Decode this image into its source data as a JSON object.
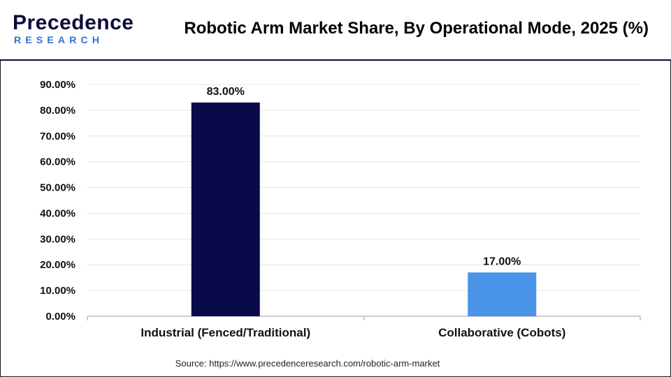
{
  "header": {
    "logo_word": "Precedence",
    "logo_sub": "RESEARCH",
    "title": "Robotic Arm Market Share, By Operational Mode, 2025 (%)"
  },
  "footer": {
    "source": "Source: https://www.precedenceresearch.com/robotic-arm-market"
  },
  "colors": {
    "brand_dark": "#0b0b3b",
    "brand_blue": "#2f6fd6"
  },
  "chart_data": {
    "type": "bar",
    "title": "Robotic Arm Market Share, By Operational Mode, 2025 (%)",
    "xlabel": "",
    "ylabel": "",
    "categories": [
      "Industrial (Fenced/Traditional)",
      "Collaborative (Cobots)"
    ],
    "values": [
      83.0,
      17.0
    ],
    "data_labels": [
      "83.00%",
      "17.00%"
    ],
    "bar_colors": [
      "#0a0a4a",
      "#4a94ea"
    ],
    "ylim": [
      0,
      90
    ],
    "yticks": [
      0,
      10,
      20,
      30,
      40,
      50,
      60,
      70,
      80,
      90
    ],
    "ytick_labels": [
      "0.00%",
      "10.00%",
      "20.00%",
      "30.00%",
      "40.00%",
      "50.00%",
      "60.00%",
      "70.00%",
      "80.00%",
      "90.00%"
    ],
    "grid": true,
    "legend": "none"
  }
}
